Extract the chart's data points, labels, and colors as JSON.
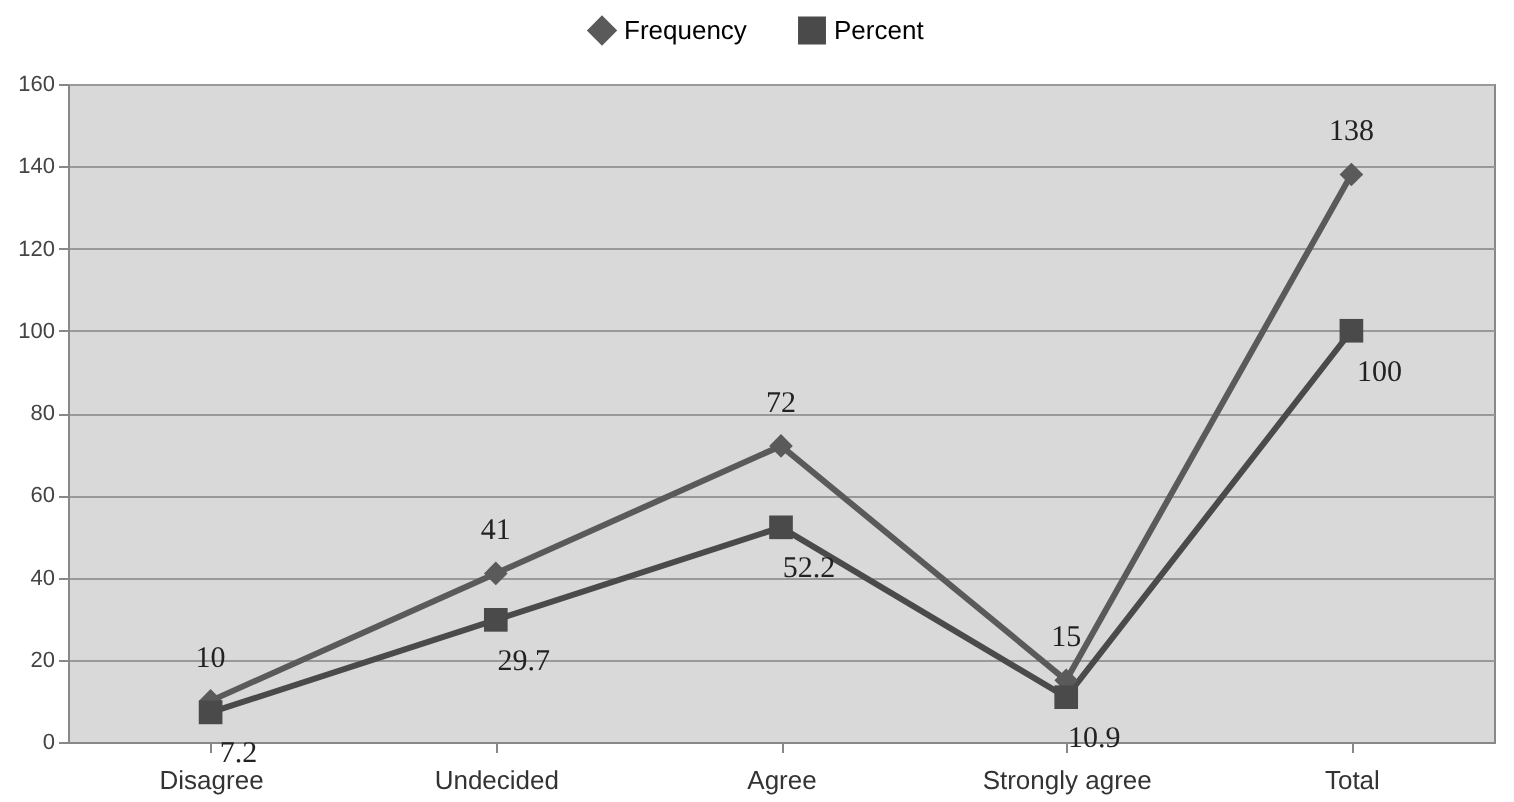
{
  "chart_data": {
    "type": "line",
    "categories": [
      "Disagree",
      "Undecided",
      "Agree",
      "Strongly agree",
      "Total"
    ],
    "series": [
      {
        "name": "Frequency",
        "color": "#5a5a5a",
        "marker": "diamond",
        "values": [
          10,
          41,
          72,
          15,
          138
        ]
      },
      {
        "name": "Percent",
        "color": "#4a4a4a",
        "marker": "square",
        "values": [
          7.2,
          29.7,
          52.2,
          10.9,
          100
        ]
      }
    ],
    "ylim": [
      0,
      160
    ],
    "yticks": [
      0,
      20,
      40,
      60,
      80,
      100,
      120,
      140,
      160
    ],
    "grid": "y",
    "legend": "top",
    "data_labels": true
  }
}
